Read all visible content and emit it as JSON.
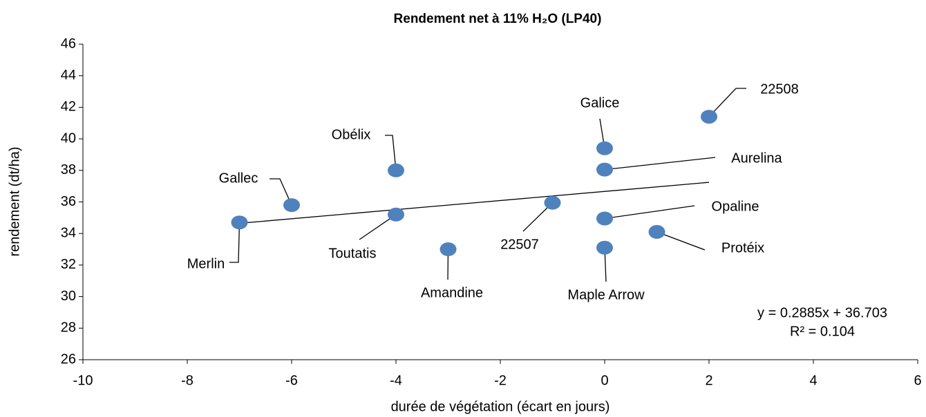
{
  "chart_data": {
    "type": "scatter",
    "title": "Rendement net à 11% H₂O (LP40)",
    "x_label": "durée de végétation (écart en jours)",
    "y_label": "rendement (dt/ha)",
    "labels": [
      "Merlin",
      "Gallec",
      "Obélix",
      "Toutatis",
      "Amandine",
      "22507",
      "Galice",
      "Aurelina",
      "Opaline",
      "Maple Arrow",
      "Protéix",
      "22508"
    ],
    "x": [
      -7,
      -6,
      -4,
      -4,
      -3,
      -1,
      0,
      0,
      0,
      0,
      1,
      2
    ],
    "values": [
      34.7,
      35.8,
      38.0,
      35.2,
      33.0,
      35.95,
      39.4,
      38.05,
      34.95,
      33.1,
      34.1,
      41.4
    ],
    "color": "#4f81bd",
    "trendline": true,
    "annotations": [
      "y = 0.2885x + 36.703",
      "R² = 0.104"
    ],
    "xlim": [
      -10,
      6
    ],
    "xticks": [
      -10,
      -8,
      -6,
      -4,
      -2,
      0,
      2,
      4,
      6
    ],
    "ylim": [
      26,
      46
    ],
    "yticks": [
      26,
      28,
      30,
      32,
      34,
      36,
      38,
      40,
      42,
      44,
      46
    ]
  }
}
